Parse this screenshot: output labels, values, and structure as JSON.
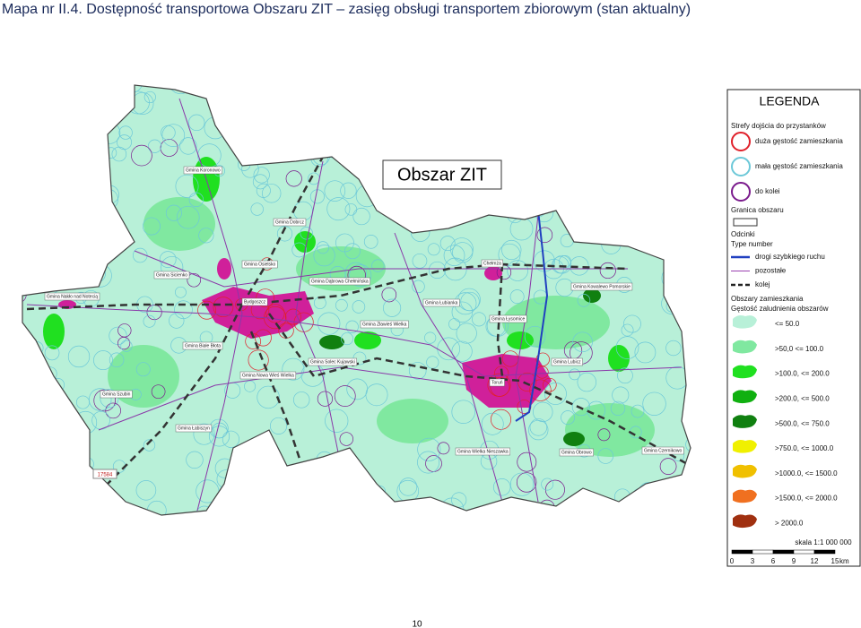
{
  "title": "Mapa nr II.4. Dostępność transportowa Obszaru ZIT – zasięg obsługi transportem zbiorowym (stan aktualny)",
  "map": {
    "label": "Obszar ZIT",
    "code": "17584",
    "places": [
      "Gmina Koronowo",
      "Gmina Dobrcz",
      "Gmina Osielsko",
      "Gmina Sicienko",
      "Gmina Dąbrowa Chełmińska",
      "Gmina Nakło nad Notecią",
      "Bydgoszcz",
      "Gmina Zławieś Wielka",
      "Gmina Łubianka",
      "Chełmża",
      "Gmina Łysomice",
      "Gmina Kowalewo Pomorskie",
      "Gmina Białe Błota",
      "Gmina Nowa Wieś Wielka",
      "Gmina Solec Kujawski",
      "Gmina Lubicz",
      "Toruń",
      "Gmina Szubin",
      "Gmina Łabiszyn",
      "Gmina Wielka Nieszawka",
      "Gmina Obrowo",
      "Gmina Czernikowo"
    ]
  },
  "legend": {
    "title": "LEGENDA",
    "stops_heading": "Strefy dojścia do przystanków",
    "stops": [
      {
        "label": "duża gęstość zamieszkania",
        "color": "#e0202a"
      },
      {
        "label": "mała gęstość zamieszkania",
        "color": "#6cc8d8"
      },
      {
        "label": "do kolei",
        "color": "#7a1a8c"
      }
    ],
    "boundary_heading": "Granica obszaru",
    "segments_heading": "Odcinki",
    "segments_subheading": "Type number",
    "segments": [
      {
        "label": "drogi szybkiego ruchu",
        "color": "#2040c0"
      },
      {
        "label": "pozostałe",
        "color": "#9a40b0"
      },
      {
        "label": "kolej",
        "color": "#222"
      }
    ],
    "density_heading": "Obszary zamieszkania",
    "density_subheading": "Gęstość zaludnienia obszarów",
    "density": [
      {
        "label": "<= 50.0",
        "color": "#b8f0d8"
      },
      {
        "label": ">50,0 <= 100.0",
        "color": "#80e8a0"
      },
      {
        "label": ">100.0, <= 200.0",
        "color": "#20e020"
      },
      {
        "label": ">200.0, <= 500.0",
        "color": "#10b010"
      },
      {
        "label": ">500.0, <= 750.0",
        "color": "#108010"
      },
      {
        "label": ">750.0, <= 1000.0",
        "color": "#f0f000"
      },
      {
        "label": ">1000.0, <= 1500.0",
        "color": "#f0c000"
      },
      {
        "label": ">1500.0, <= 2000.0",
        "color": "#f07020"
      },
      {
        "label": "> 2000.0",
        "color": "#a03010"
      }
    ],
    "scale": "skala 1:1 000 000",
    "scale_ticks": [
      "0",
      "3",
      "6",
      "9",
      "12",
      "15",
      "km"
    ]
  },
  "page_number": "10"
}
